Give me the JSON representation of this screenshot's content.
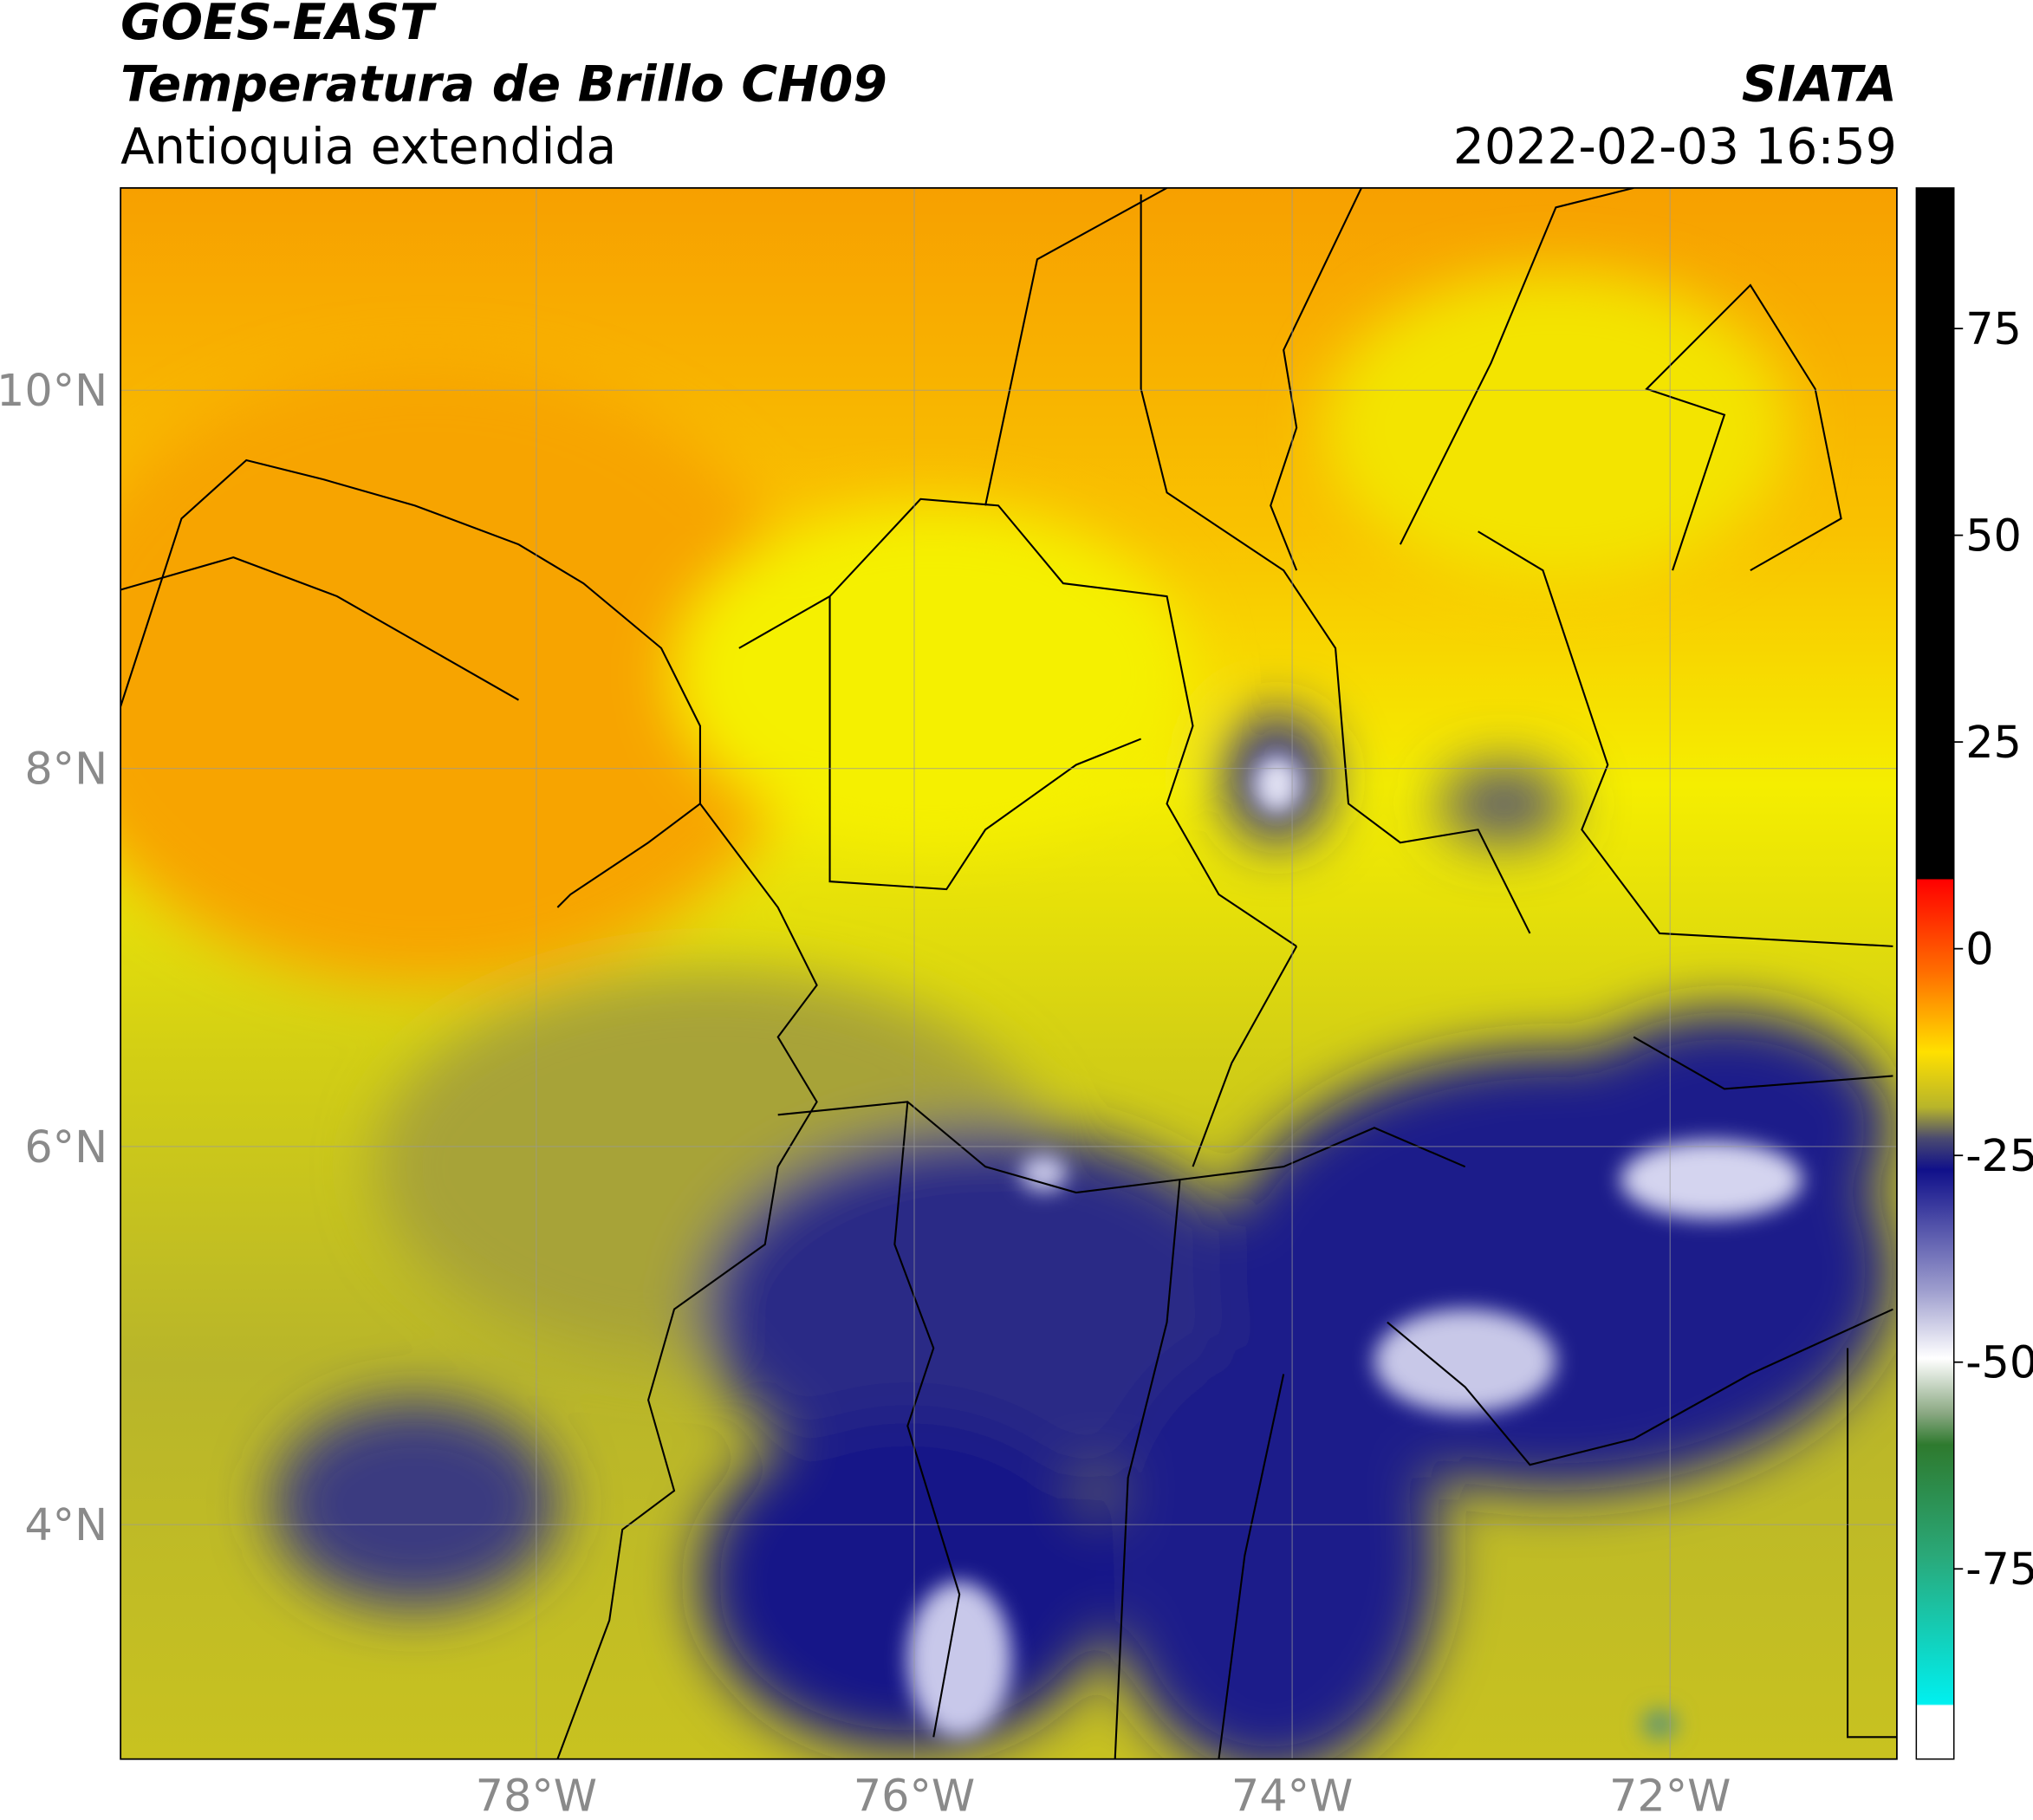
{
  "header": {
    "satellite": "GOES-EAST",
    "product": "Temperatura de Brillo CH09",
    "region": "Antioquia extendida",
    "agency": "SIATA",
    "datetime": "2022-02-03 16:59"
  },
  "map": {
    "xlim": [
      -80.2,
      -70.8
    ],
    "ylim": [
      2.76,
      11.07
    ],
    "xticks": [
      {
        "value": -78,
        "label": "78°W"
      },
      {
        "value": -76,
        "label": "76°W"
      },
      {
        "value": -74,
        "label": "74°W"
      },
      {
        "value": -72,
        "label": "72°W"
      }
    ],
    "yticks": [
      {
        "value": 4,
        "label": "4°N"
      },
      {
        "value": 6,
        "label": "6°N"
      },
      {
        "value": 8,
        "label": "8°N"
      },
      {
        "value": 10,
        "label": "10°N"
      }
    ]
  },
  "colorbar": {
    "lim": [
      -98,
      92
    ],
    "ticks": [
      -75,
      -50,
      -25,
      0,
      25,
      50,
      75
    ]
  }
}
